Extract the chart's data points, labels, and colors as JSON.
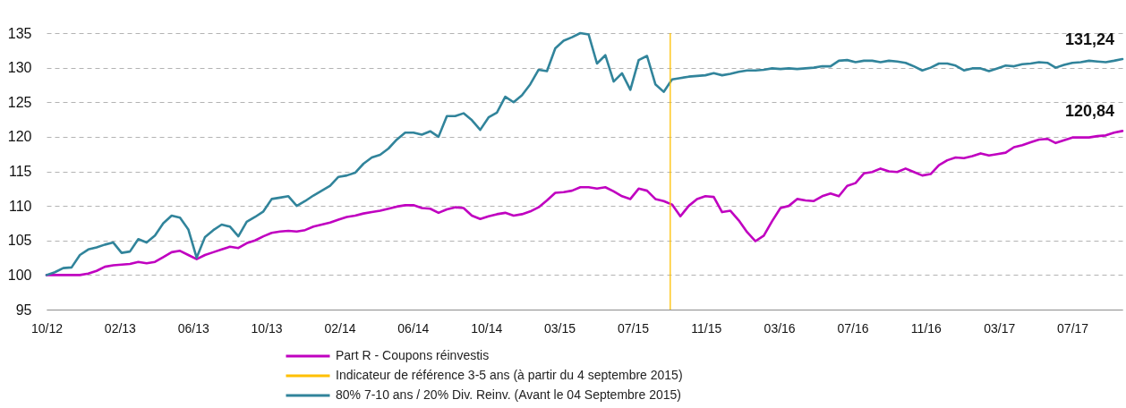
{
  "chart_data": {
    "type": "line",
    "x": [
      "2012-10-22",
      "2012-11-05",
      "2012-11-19",
      "2012-12-03",
      "2012-12-17",
      "2012-12-31",
      "2013-01-14",
      "2013-01-28",
      "2013-02-11",
      "2013-02-25",
      "2013-03-11",
      "2013-03-25",
      "2013-04-08",
      "2013-04-22",
      "2013-05-06",
      "2013-05-20",
      "2013-06-03",
      "2013-06-17",
      "2013-07-01",
      "2013-07-15",
      "2013-07-29",
      "2013-08-12",
      "2013-08-26",
      "2013-09-09",
      "2013-09-23",
      "2013-10-07",
      "2013-10-21",
      "2013-11-04",
      "2013-11-18",
      "2013-12-02",
      "2013-12-16",
      "2013-12-30",
      "2014-01-13",
      "2014-01-27",
      "2014-02-10",
      "2014-02-24",
      "2014-03-10",
      "2014-03-24",
      "2014-04-07",
      "2014-04-21",
      "2014-05-05",
      "2014-05-19",
      "2014-06-02",
      "2014-06-16",
      "2014-06-30",
      "2014-07-14",
      "2014-07-28",
      "2014-08-11",
      "2014-08-25",
      "2014-09-08",
      "2014-09-22",
      "2014-10-06",
      "2014-10-20",
      "2014-11-03",
      "2014-11-17",
      "2014-12-01",
      "2014-12-15",
      "2014-12-29",
      "2015-01-12",
      "2015-01-26",
      "2015-02-09",
      "2015-02-23",
      "2015-03-09",
      "2015-03-23",
      "2015-04-06",
      "2015-04-20",
      "2015-05-04",
      "2015-05-18",
      "2015-06-01",
      "2015-06-15",
      "2015-06-29",
      "2015-07-13",
      "2015-07-27",
      "2015-08-10",
      "2015-08-24",
      "2015-09-07",
      "2015-09-21",
      "2015-10-05",
      "2015-10-19",
      "2015-11-02",
      "2015-11-16",
      "2015-11-30",
      "2015-12-14",
      "2015-12-28",
      "2016-01-11",
      "2016-01-25",
      "2016-02-08",
      "2016-02-22",
      "2016-03-07",
      "2016-03-21",
      "2016-04-04",
      "2016-04-18",
      "2016-05-02",
      "2016-05-16",
      "2016-05-30",
      "2016-06-13",
      "2016-06-27",
      "2016-07-11",
      "2016-07-25",
      "2016-08-08",
      "2016-08-22",
      "2016-09-05",
      "2016-09-19",
      "2016-10-03",
      "2016-10-17",
      "2016-10-31",
      "2016-11-14",
      "2016-11-28",
      "2016-12-12",
      "2016-12-26",
      "2017-01-09",
      "2017-01-23",
      "2017-02-06",
      "2017-02-20",
      "2017-03-06",
      "2017-03-20",
      "2017-04-03",
      "2017-04-17",
      "2017-05-01",
      "2017-05-15",
      "2017-05-29",
      "2017-06-12",
      "2017-06-26",
      "2017-07-10",
      "2017-07-24",
      "2017-08-07",
      "2017-08-21",
      "2017-09-04",
      "2017-09-18",
      "2017-10-02"
    ],
    "series": [
      {
        "name": "Part R - Coupons réinvestis",
        "color": "#c000c0",
        "values": [
          100.0,
          100.0,
          100.0,
          100.0,
          100.0,
          100.2,
          100.6,
          101.2,
          101.4,
          101.5,
          101.6,
          101.9,
          101.7,
          101.9,
          102.6,
          103.3,
          103.5,
          102.9,
          102.3,
          102.9,
          103.3,
          103.7,
          104.1,
          103.9,
          104.6,
          105.0,
          105.6,
          106.1,
          106.3,
          106.4,
          106.3,
          106.5,
          107.0,
          107.3,
          107.6,
          108.0,
          108.4,
          108.6,
          108.9,
          109.1,
          109.3,
          109.6,
          109.9,
          110.1,
          110.1,
          109.7,
          109.6,
          109.0,
          109.5,
          109.8,
          109.7,
          108.6,
          108.1,
          108.5,
          108.8,
          109.0,
          108.6,
          108.8,
          109.2,
          109.8,
          110.8,
          111.9,
          112.0,
          112.2,
          112.7,
          112.7,
          112.5,
          112.7,
          112.1,
          111.4,
          111.0,
          112.5,
          112.2,
          111.0,
          110.7,
          110.2,
          108.5,
          110.0,
          111.0,
          111.4,
          111.3,
          109.1,
          109.3,
          107.9,
          106.2,
          104.9,
          105.7,
          107.8,
          109.7,
          110.0,
          111.0,
          110.8,
          110.7,
          111.4,
          111.8,
          111.4,
          112.9,
          113.3,
          114.7,
          114.9,
          115.4,
          115.0,
          114.9,
          115.4,
          114.9,
          114.4,
          114.6,
          115.9,
          116.6,
          117.0,
          116.9,
          117.2,
          117.6,
          117.3,
          117.5,
          117.7,
          118.5,
          118.8,
          119.2,
          119.6,
          119.7,
          119.1,
          119.5,
          119.9,
          119.9,
          119.9,
          120.1,
          120.2,
          120.6,
          120.84
        ],
        "value_labels": [
          null,
          null,
          null,
          null,
          null,
          null,
          null,
          null,
          null,
          null,
          null,
          null,
          null,
          null,
          null,
          null,
          null,
          null,
          null,
          null,
          null,
          null,
          null,
          null,
          null,
          null,
          null,
          null,
          null,
          null,
          null,
          null,
          null,
          null,
          null,
          null,
          null,
          null,
          null,
          null,
          null,
          null,
          null,
          null,
          null,
          null,
          null,
          null,
          null,
          null,
          null,
          null,
          null,
          null,
          null,
          null,
          null,
          null,
          null,
          null,
          null,
          null,
          null,
          null,
          null,
          null,
          null,
          null,
          null,
          null,
          null,
          null,
          null,
          null,
          null,
          null,
          null,
          null,
          null,
          null,
          null,
          null,
          null,
          null,
          null,
          null,
          null,
          null,
          null,
          null,
          null,
          null,
          null,
          null,
          null,
          null,
          null,
          null,
          null,
          null,
          null,
          null,
          null,
          null,
          null,
          null,
          null,
          null,
          null,
          null,
          null,
          null,
          null,
          null,
          null,
          null,
          null,
          null,
          null,
          null,
          null,
          null,
          null,
          null,
          null,
          null,
          null,
          null,
          null,
          "120,84"
        ]
      },
      {
        "name": "80% 7-10 ans / 20% Div. Reinv. (Avant le 04 Septembre 2015)",
        "color": "#31849b",
        "values": [
          100.0,
          100.4,
          101.0,
          101.1,
          102.9,
          103.7,
          104.0,
          104.4,
          104.7,
          103.2,
          103.4,
          105.2,
          104.7,
          105.7,
          107.5,
          108.6,
          108.3,
          106.6,
          102.5,
          105.5,
          106.5,
          107.3,
          107.0,
          105.6,
          107.7,
          108.4,
          109.2,
          111.0,
          111.2,
          111.4,
          110.0,
          110.7,
          111.5,
          112.2,
          112.9,
          114.2,
          114.4,
          114.8,
          116.1,
          117.0,
          117.4,
          118.3,
          119.6,
          120.6,
          120.6,
          120.3,
          120.8,
          120.0,
          123.0,
          123.0,
          123.4,
          122.4,
          121.0,
          122.8,
          123.5,
          125.8,
          125.0,
          126.0,
          127.6,
          129.7,
          129.5,
          132.8,
          133.9,
          134.4,
          135.0,
          134.8,
          130.6,
          131.8,
          128.0,
          129.2,
          126.8,
          131.1,
          131.7,
          127.6,
          126.5,
          128.3,
          128.5,
          128.7,
          128.8,
          128.9,
          129.2,
          128.9,
          129.1,
          129.4,
          129.6,
          129.6,
          129.7,
          129.9,
          129.8,
          129.9,
          129.8,
          129.9,
          130.0,
          130.2,
          130.2,
          131.0,
          131.1,
          130.8,
          131.0,
          131.0,
          130.8,
          131.0,
          130.9,
          130.7,
          130.2,
          129.6,
          130.0,
          130.6,
          130.6,
          130.3,
          129.6,
          129.9,
          129.9,
          129.5,
          129.9,
          130.3,
          130.2,
          130.5,
          130.6,
          130.8,
          130.7,
          130.0,
          130.4,
          130.7,
          130.8,
          131.0,
          130.9,
          130.8,
          131.0,
          131.24
        ],
        "value_labels": [
          null,
          null,
          null,
          null,
          null,
          null,
          null,
          null,
          null,
          null,
          null,
          null,
          null,
          null,
          null,
          null,
          null,
          null,
          null,
          null,
          null,
          null,
          null,
          null,
          null,
          null,
          null,
          null,
          null,
          null,
          null,
          null,
          null,
          null,
          null,
          null,
          null,
          null,
          null,
          null,
          null,
          null,
          null,
          null,
          null,
          null,
          null,
          null,
          null,
          null,
          null,
          null,
          null,
          null,
          null,
          null,
          null,
          null,
          null,
          null,
          null,
          null,
          null,
          null,
          null,
          null,
          null,
          null,
          null,
          null,
          null,
          null,
          null,
          null,
          null,
          null,
          null,
          null,
          null,
          null,
          null,
          null,
          null,
          null,
          null,
          null,
          null,
          null,
          null,
          null,
          null,
          null,
          null,
          null,
          null,
          null,
          null,
          null,
          null,
          null,
          null,
          null,
          null,
          null,
          null,
          null,
          null,
          null,
          null,
          null,
          null,
          null,
          null,
          null,
          null,
          null,
          null,
          null,
          null,
          null,
          null,
          null,
          null,
          null,
          null,
          null,
          null,
          null,
          null,
          "131,24"
        ]
      }
    ],
    "ref_lines": [
      {
        "axis": "x",
        "value": "2015-09-04",
        "label": "Indicateur de référence 3-5 ans (à partir du 4 septembre 2015)",
        "color": "#ffc000"
      }
    ],
    "xlim": [
      "2012-10-22",
      "2017-10-02"
    ],
    "xticks": [
      {
        "value": "2012-10-22",
        "label": "10/12"
      },
      {
        "value": "2013-02-22",
        "label": "02/13"
      },
      {
        "value": "2013-06-25",
        "label": "06/13"
      },
      {
        "value": "2013-10-26",
        "label": "10/13"
      },
      {
        "value": "2014-02-26",
        "label": "02/14"
      },
      {
        "value": "2014-06-29",
        "label": "06/14"
      },
      {
        "value": "2014-10-30",
        "label": "10/14"
      },
      {
        "value": "2015-03-02",
        "label": "03/15"
      },
      {
        "value": "2015-07-03",
        "label": "07/15"
      },
      {
        "value": "2015-11-03",
        "label": "11/15"
      },
      {
        "value": "2016-03-05",
        "label": "03/16"
      },
      {
        "value": "2016-07-06",
        "label": "07/16"
      },
      {
        "value": "2016-11-06",
        "label": "11/16"
      },
      {
        "value": "2017-03-09",
        "label": "03/17"
      },
      {
        "value": "2017-07-10",
        "label": "07/17"
      }
    ],
    "ylim": [
      95,
      135
    ],
    "yticks": [
      95,
      100,
      105,
      110,
      115,
      120,
      125,
      130,
      135
    ],
    "grid": "y",
    "legend": "bottom"
  }
}
